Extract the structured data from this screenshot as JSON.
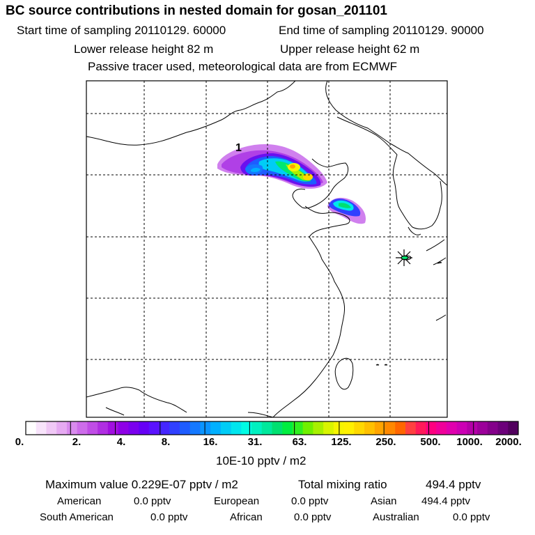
{
  "header": {
    "title": "BC  source contributions in nested domain for gosan_201101",
    "start_label": "Start time of sampling 20110129. 60000",
    "end_label": "End time of sampling 20110129. 90000",
    "lower_label": "Lower release height   82 m",
    "upper_label": "Upper release height   62 m",
    "tracer_label": "Passive tracer used, meteorological data are from ECMWF"
  },
  "map": {
    "release_marker_label": "1"
  },
  "colorbar": {
    "tick_labels": [
      "0.",
      "2.",
      "4.",
      "8.",
      "16.",
      "31.",
      "63.",
      "125.",
      "250.",
      "500.",
      "1000.",
      "2000."
    ],
    "unit_label": "10E-10 pptv / m2",
    "colors": [
      "#ffffff",
      "#f8e4fb",
      "#f0c8f6",
      "#e6aaf2",
      "#d98bee",
      "#cd6cea",
      "#c04de6",
      "#b02ee2",
      "#a10fe0",
      "#8e00e6",
      "#7a00ee",
      "#6600f5",
      "#5a12ff",
      "#4526ff",
      "#3040ff",
      "#1e5cff",
      "#1478ff",
      "#0a94ff",
      "#00b0ff",
      "#00ccf6",
      "#00e6ee",
      "#00fce4",
      "#00f0c0",
      "#00e89c",
      "#00e070",
      "#00ee40",
      "#30f020",
      "#70f000",
      "#a8f000",
      "#d8f400",
      "#f6f400",
      "#fff000",
      "#ffd800",
      "#ffc000",
      "#ffa400",
      "#ff8800",
      "#ff6600",
      "#ff4040",
      "#ff1a5a",
      "#ff0080",
      "#f0009a",
      "#e000ae",
      "#cc00b4",
      "#b400a8",
      "#9c009a",
      "#84008a",
      "#6c007a",
      "#52005e"
    ]
  },
  "footer": {
    "max_label": "Maximum value  0.229E-07 pptv / m2",
    "total_label": "Total mixing ratio",
    "total_value": "494.4 pptv",
    "american_label": "American",
    "american_value": "0.0 pptv",
    "european_label": "European",
    "european_value": "0.0 pptv",
    "asian_label": "Asian",
    "asian_value": "494.4 pptv",
    "south_american_label": "South American",
    "south_american_value": "0.0 pptv",
    "african_label": "African",
    "african_value": "0.0 pptv",
    "australian_label": "Australian",
    "australian_value": "0.0 pptv"
  }
}
